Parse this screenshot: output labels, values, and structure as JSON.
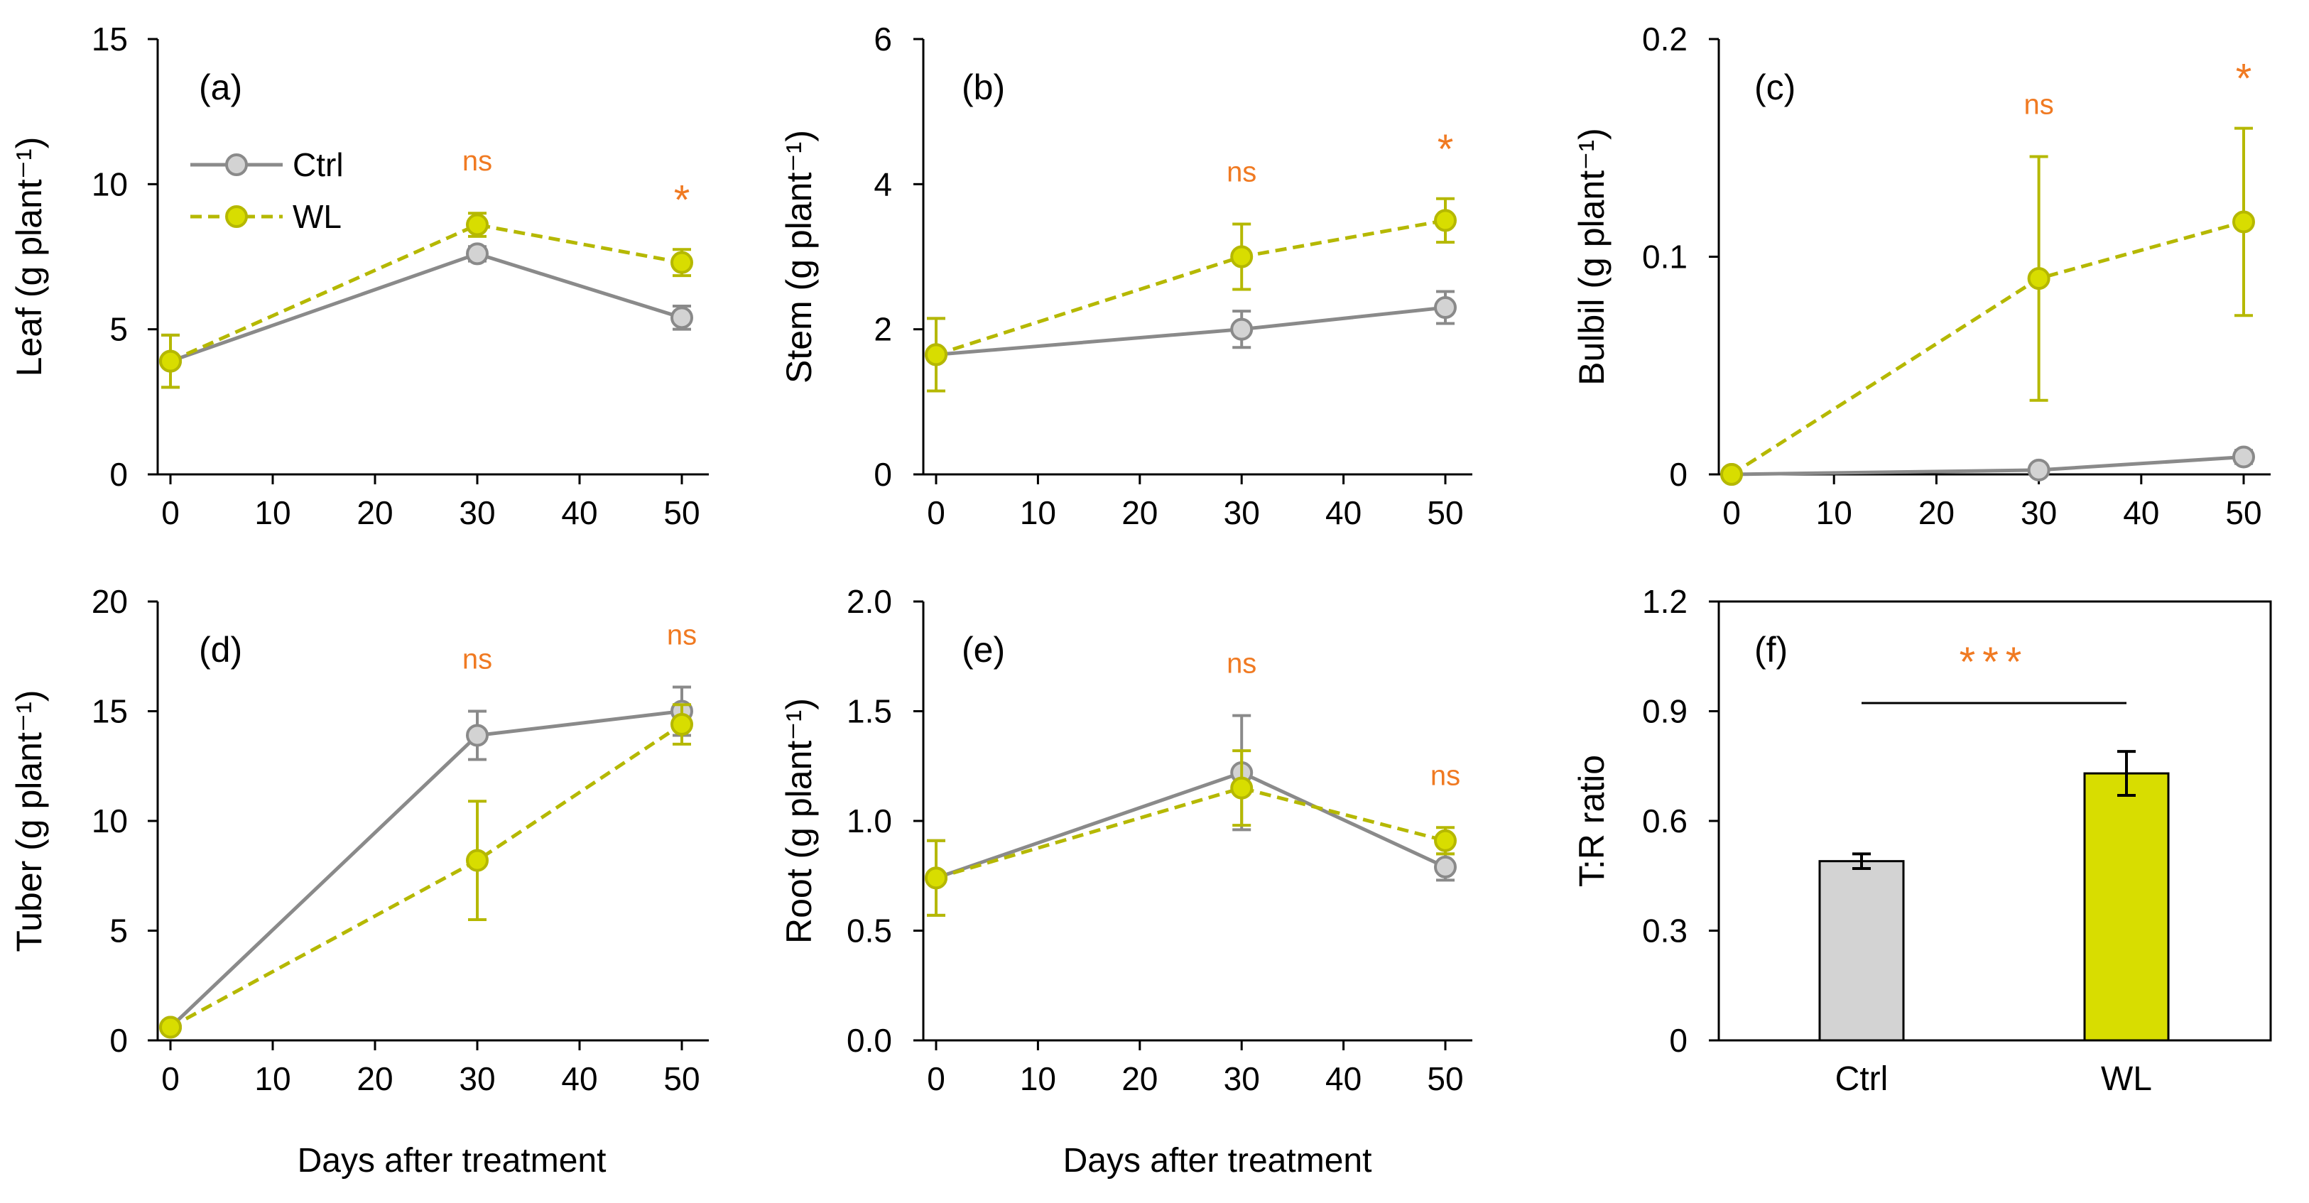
{
  "colors": {
    "ctrl_line": "#8a8a8a",
    "ctrl_fill": "#d3d3d3",
    "wl_line": "#b5b800",
    "wl_fill": "#d8dd00",
    "sig": "#f07a22",
    "axis": "#000000"
  },
  "x_label": "Days after treatment",
  "legend": {
    "ctrl": "Ctrl",
    "wl": "WL"
  },
  "chart_data": [
    {
      "type": "line",
      "panel": "(a)",
      "ylabel": "Leaf (g plant⁻¹)",
      "x": [
        0,
        30,
        50
      ],
      "xlim": [
        0,
        50
      ],
      "xticks": [
        "0",
        "10",
        "20",
        "30",
        "40",
        "50"
      ],
      "ylim": [
        0,
        15
      ],
      "yticks": [
        "0",
        "5",
        "10",
        "15"
      ],
      "series": [
        {
          "name": "Ctrl",
          "values": [
            3.9,
            7.6,
            5.4
          ],
          "errors": [
            0.9,
            0.25,
            0.4
          ]
        },
        {
          "name": "WL",
          "values": [
            3.9,
            8.6,
            7.3
          ],
          "errors": [
            0.9,
            0.4,
            0.45
          ]
        }
      ],
      "significance": [
        {
          "x": 30,
          "label": "ns"
        },
        {
          "x": 50,
          "label": "*"
        }
      ]
    },
    {
      "type": "line",
      "panel": "(b)",
      "ylabel": "Stem (g plant⁻¹)",
      "x": [
        0,
        30,
        50
      ],
      "xlim": [
        0,
        50
      ],
      "xticks": [
        "0",
        "10",
        "20",
        "30",
        "40",
        "50"
      ],
      "ylim": [
        0,
        6
      ],
      "yticks": [
        "0",
        "2",
        "4",
        "6"
      ],
      "series": [
        {
          "name": "Ctrl",
          "values": [
            1.65,
            2.0,
            2.3
          ],
          "errors": [
            0.5,
            0.25,
            0.22
          ]
        },
        {
          "name": "WL",
          "values": [
            1.65,
            3.0,
            3.5
          ],
          "errors": [
            0.5,
            0.45,
            0.3
          ]
        }
      ],
      "significance": [
        {
          "x": 30,
          "label": "ns"
        },
        {
          "x": 50,
          "label": "*"
        }
      ]
    },
    {
      "type": "line",
      "panel": "(c)",
      "ylabel": "Bulbil (g plant⁻¹)",
      "x": [
        0,
        30,
        50
      ],
      "xlim": [
        0,
        50
      ],
      "xticks": [
        "0",
        "10",
        "20",
        "30",
        "40",
        "50"
      ],
      "ylim": [
        0,
        0.2
      ],
      "yticks": [
        "0",
        "0.1",
        "0.2"
      ],
      "series": [
        {
          "name": "Ctrl",
          "values": [
            0,
            0.002,
            0.008
          ],
          "errors": [
            0,
            0.001,
            0.003
          ]
        },
        {
          "name": "WL",
          "values": [
            0,
            0.09,
            0.116
          ],
          "errors": [
            0,
            0.056,
            0.043
          ]
        }
      ],
      "significance": [
        {
          "x": 30,
          "label": "ns"
        },
        {
          "x": 50,
          "label": "*"
        }
      ]
    },
    {
      "type": "line",
      "panel": "(d)",
      "ylabel": "Tuber (g plant⁻¹)",
      "x": [
        0,
        30,
        50
      ],
      "xlim": [
        0,
        50
      ],
      "xticks": [
        "0",
        "10",
        "20",
        "30",
        "40",
        "50"
      ],
      "ylim": [
        0,
        20
      ],
      "yticks": [
        "0",
        "5",
        "10",
        "15",
        "20"
      ],
      "series": [
        {
          "name": "Ctrl",
          "values": [
            0.6,
            13.9,
            15.0
          ],
          "errors": [
            0.1,
            1.1,
            1.1
          ]
        },
        {
          "name": "WL",
          "values": [
            0.6,
            8.2,
            14.4
          ],
          "errors": [
            0.1,
            2.7,
            0.9
          ]
        }
      ],
      "significance": [
        {
          "x": 30,
          "label": "ns"
        },
        {
          "x": 50,
          "label": "ns"
        }
      ]
    },
    {
      "type": "line",
      "panel": "(e)",
      "ylabel": "Root (g plant⁻¹)",
      "x": [
        0,
        30,
        50
      ],
      "xlim": [
        0,
        50
      ],
      "xticks": [
        "0",
        "10",
        "20",
        "30",
        "40",
        "50"
      ],
      "ylim": [
        0,
        2.0
      ],
      "yticks": [
        "0.0",
        "0.5",
        "1.0",
        "1.5",
        "2.0"
      ],
      "series": [
        {
          "name": "Ctrl",
          "values": [
            0.74,
            1.22,
            0.79
          ],
          "errors": [
            0.17,
            0.26,
            0.06
          ]
        },
        {
          "name": "WL",
          "values": [
            0.74,
            1.15,
            0.91
          ],
          "errors": [
            0.17,
            0.17,
            0.06
          ]
        }
      ],
      "significance": [
        {
          "x": 30,
          "label": "ns"
        },
        {
          "x": 50,
          "label": "ns"
        }
      ]
    },
    {
      "type": "bar",
      "panel": "(f)",
      "ylabel": "T:R ratio",
      "categories": [
        "Ctrl",
        "WL"
      ],
      "values": [
        0.49,
        0.73
      ],
      "errors": [
        0.02,
        0.06
      ],
      "ylim": [
        0,
        1.2
      ],
      "yticks": [
        "0",
        "0.3",
        "0.6",
        "0.9",
        "1.2"
      ],
      "significance": [
        {
          "label": "***"
        }
      ]
    }
  ]
}
